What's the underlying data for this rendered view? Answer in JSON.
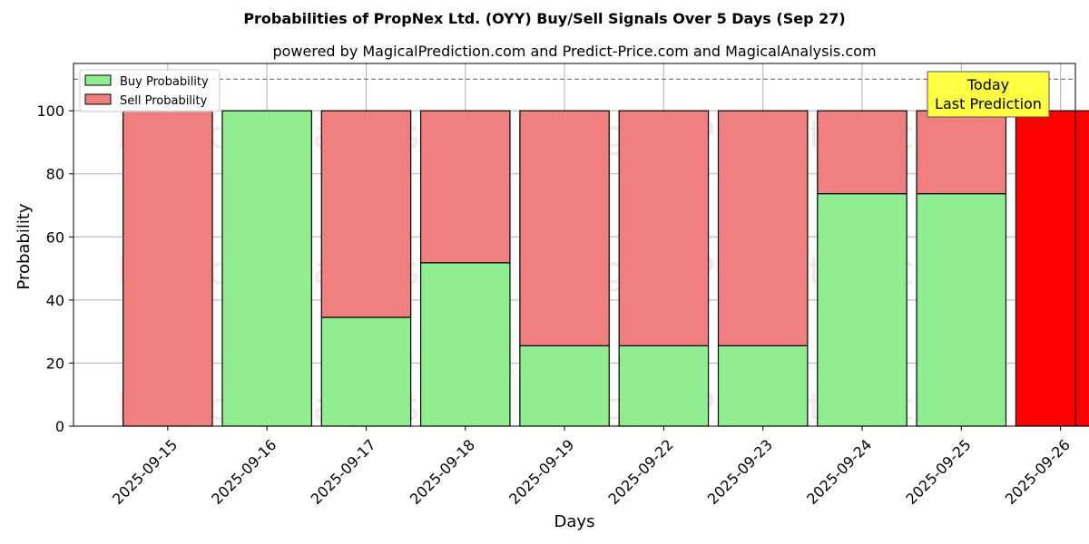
{
  "chart_data": {
    "type": "bar",
    "stacked": true,
    "title": "Probabilities of PropNex Ltd. (OYY) Buy/Sell Signals Over 5 Days (Sep 27)",
    "subtitle": "powered by MagicalPrediction.com and Predict-Price.com and MagicalAnalysis.com",
    "xlabel": "Days",
    "ylabel": "Probability",
    "ylim": [
      0,
      115
    ],
    "yticks": [
      0,
      20,
      40,
      60,
      80,
      100
    ],
    "grid": true,
    "categories": [
      "2025-09-15",
      "2025-09-16",
      "2025-09-17",
      "2025-09-18",
      "2025-09-19",
      "2025-09-22",
      "2025-09-23",
      "2025-09-24",
      "2025-09-25",
      "2025-09-26"
    ],
    "series": [
      {
        "name": "Buy Probability",
        "color": "#90ee90",
        "values": [
          0,
          100,
          34.5,
          51.8,
          25.5,
          25.5,
          25.5,
          73.7,
          73.7,
          0
        ]
      },
      {
        "name": "Sell Probability",
        "color": "#f08080",
        "values": [
          100,
          0,
          65.5,
          48.2,
          74.5,
          74.5,
          74.5,
          26.3,
          26.3,
          100
        ]
      }
    ],
    "highlight": {
      "index": 9,
      "color": "#ff0000"
    },
    "reference_line": {
      "y": 110,
      "style": "dashed",
      "color": "#808080"
    },
    "legend": {
      "placement": "top-left"
    },
    "annotation": {
      "lines": [
        "Today",
        "Last Prediction"
      ],
      "background": "#ffff44"
    },
    "watermarks": [
      "MagicalAnalysis.com",
      "MagicalPrediction.com"
    ]
  }
}
